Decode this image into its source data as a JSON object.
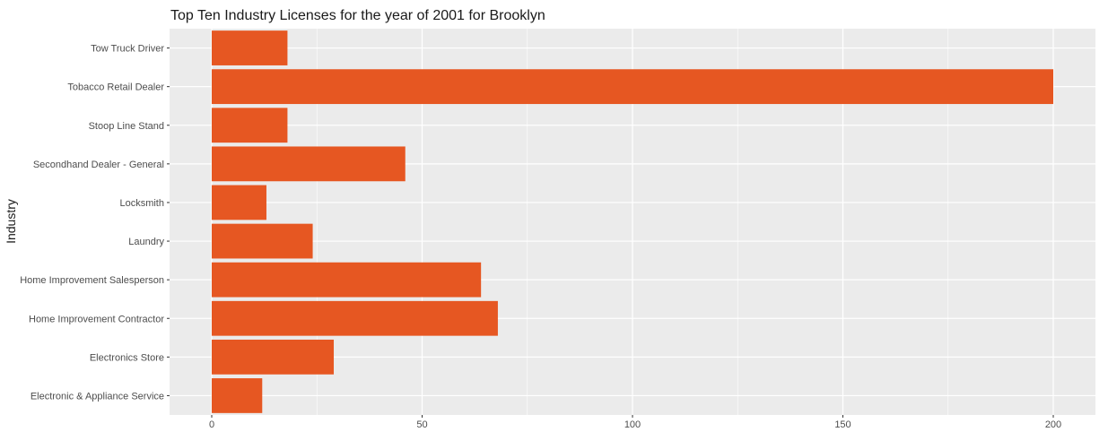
{
  "chart_data": {
    "type": "bar",
    "orientation": "horizontal",
    "title": "Top Ten Industry Licenses for the year of 2001 for Brooklyn",
    "xlabel": "",
    "ylabel": "Industry",
    "categories": [
      "Tow Truck Driver",
      "Tobacco Retail Dealer",
      "Stoop Line Stand",
      "Secondhand Dealer - General",
      "Locksmith",
      "Laundry",
      "Home Improvement Salesperson",
      "Home Improvement Contractor",
      "Electronics Store",
      "Electronic & Appliance Service"
    ],
    "values": [
      18,
      200,
      18,
      46,
      13,
      24,
      64,
      68,
      29,
      12
    ],
    "xlim": [
      -10,
      210
    ],
    "xticks": [
      0,
      50,
      100,
      150,
      200
    ],
    "grid": true,
    "legend": "none",
    "bar_color": "#E65722",
    "panel_color": "#EBEBEB",
    "grid_color": "#FFFFFF"
  }
}
